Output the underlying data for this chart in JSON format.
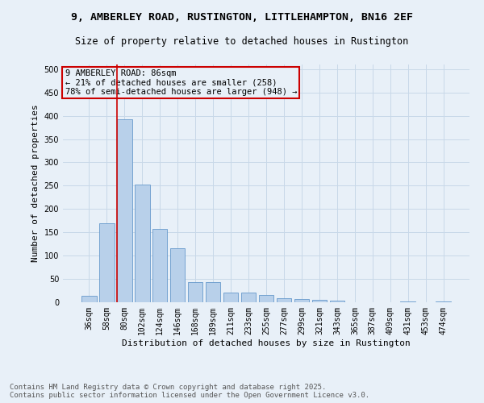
{
  "title_line1": "9, AMBERLEY ROAD, RUSTINGTON, LITTLEHAMPTON, BN16 2EF",
  "title_line2": "Size of property relative to detached houses in Rustington",
  "xlabel": "Distribution of detached houses by size in Rustington",
  "ylabel": "Number of detached properties",
  "categories": [
    "36sqm",
    "58sqm",
    "80sqm",
    "102sqm",
    "124sqm",
    "146sqm",
    "168sqm",
    "189sqm",
    "211sqm",
    "233sqm",
    "255sqm",
    "277sqm",
    "299sqm",
    "321sqm",
    "343sqm",
    "365sqm",
    "387sqm",
    "409sqm",
    "431sqm",
    "453sqm",
    "474sqm"
  ],
  "values": [
    13,
    170,
    392,
    252,
    158,
    115,
    44,
    43,
    20,
    20,
    15,
    9,
    7,
    5,
    3,
    0,
    0,
    0,
    1,
    0,
    1
  ],
  "bar_color": "#b8d0ea",
  "bar_edge_color": "#6699cc",
  "grid_color": "#c8d8e8",
  "background_color": "#e8f0f8",
  "annotation_box_text": "9 AMBERLEY ROAD: 86sqm\n← 21% of detached houses are smaller (258)\n78% of semi-detached houses are larger (948) →",
  "vline_x_index": 2,
  "vline_color": "#cc0000",
  "ylim": [
    0,
    510
  ],
  "yticks": [
    0,
    50,
    100,
    150,
    200,
    250,
    300,
    350,
    400,
    450,
    500
  ],
  "footer_line1": "Contains HM Land Registry data © Crown copyright and database right 2025.",
  "footer_line2": "Contains public sector information licensed under the Open Government Licence v3.0.",
  "title_fontsize": 9.5,
  "subtitle_fontsize": 8.5,
  "axis_label_fontsize": 8,
  "tick_fontsize": 7,
  "annotation_fontsize": 7.5,
  "footer_fontsize": 6.5
}
